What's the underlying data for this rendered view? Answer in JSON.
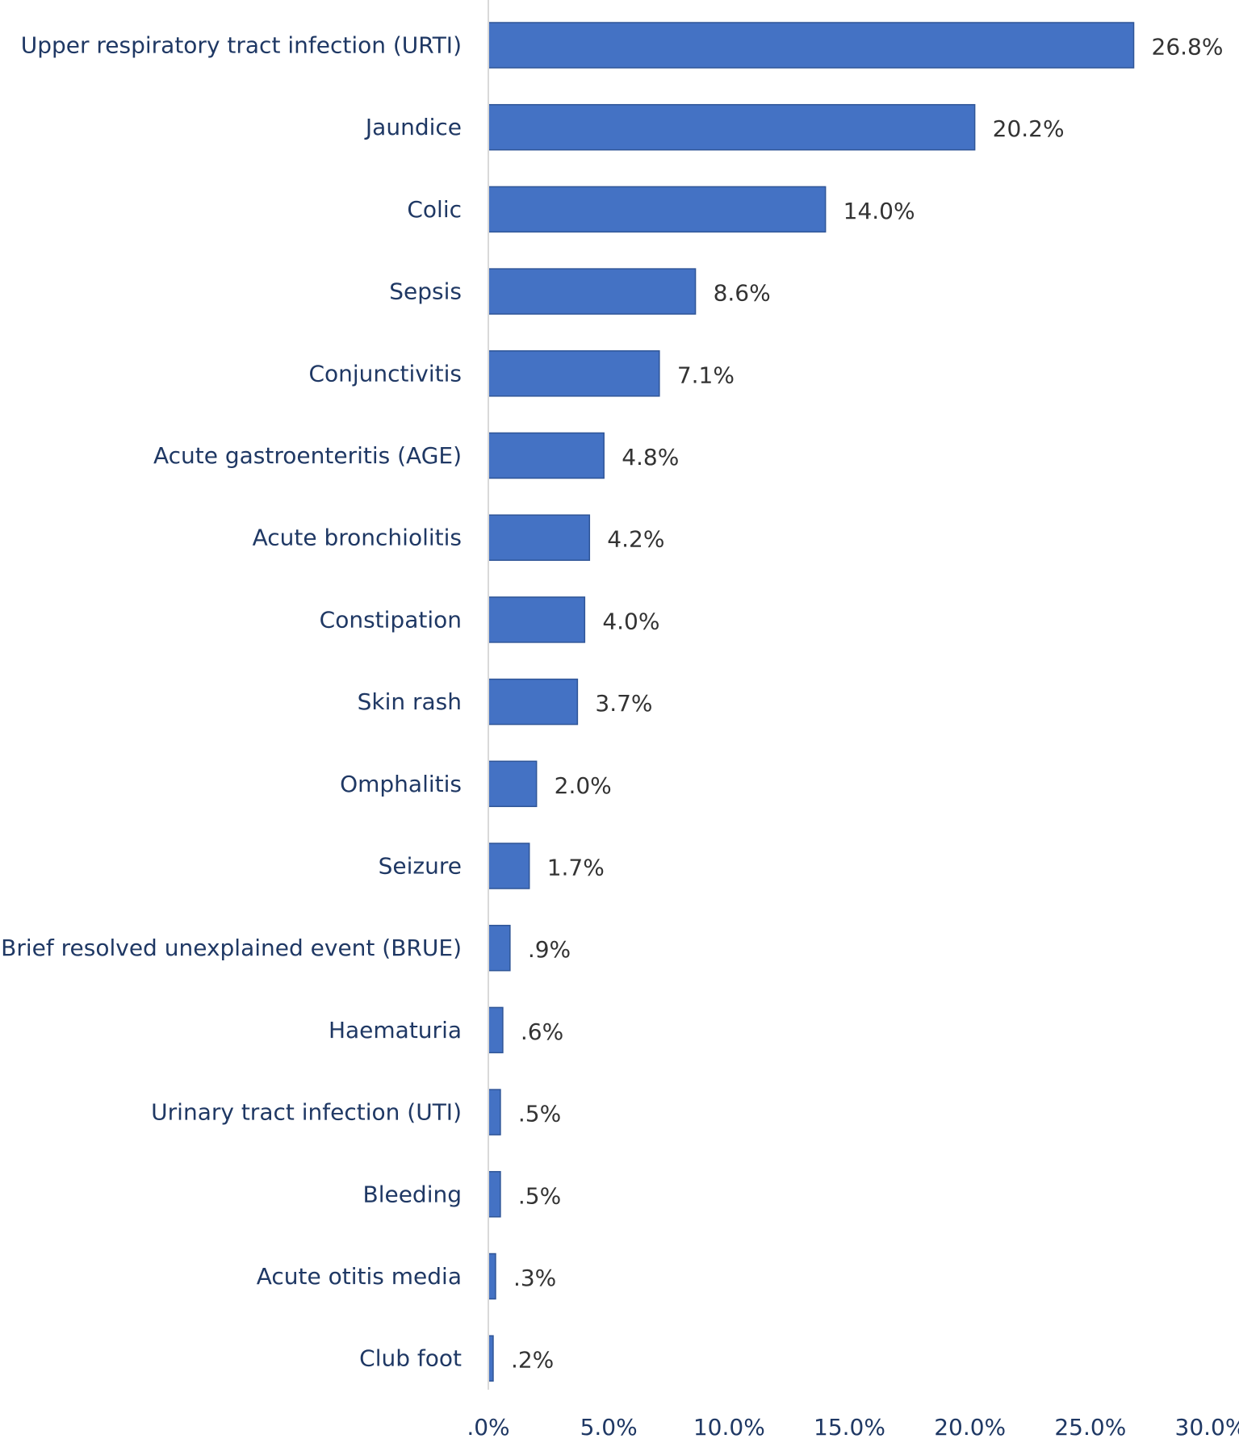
{
  "chart_data": {
    "type": "bar",
    "orientation": "horizontal",
    "title": "",
    "xlabel": "",
    "ylabel": "",
    "categories": [
      "Upper respiratory tract infection (URTI)",
      "Jaundice",
      "Colic",
      "Sepsis",
      "Conjunctivitis",
      "Acute gastroenteritis (AGE)",
      "Acute bronchiolitis",
      "Constipation",
      "Skin rash",
      "Omphalitis",
      "Seizure",
      "Brief resolved unexplained event (BRUE)",
      "Haematuria",
      "Urinary tract infection (UTI)",
      "Bleeding",
      "Acute otitis media",
      "Club foot"
    ],
    "values": [
      26.8,
      20.2,
      14.0,
      8.6,
      7.1,
      4.8,
      4.2,
      4.0,
      3.7,
      2.0,
      1.7,
      0.9,
      0.6,
      0.5,
      0.5,
      0.3,
      0.2
    ],
    "data_labels": [
      "26.8%",
      "20.2%",
      "14.0%",
      "8.6%",
      "7.1%",
      "4.8%",
      "4.2%",
      "4.0%",
      "3.7%",
      "2.0%",
      "1.7%",
      ".9%",
      ".6%",
      ".5%",
      ".5%",
      ".3%",
      ".2%"
    ],
    "x_ticks": [
      0,
      5,
      10,
      15,
      20,
      25,
      30
    ],
    "x_tick_labels": [
      ".0%",
      "5.0%",
      "10.0%",
      "15.0%",
      "20.0%",
      "25.0%",
      "30.0%"
    ],
    "xlim": [
      0,
      30
    ],
    "grid": false,
    "legend": "none",
    "colors": {
      "bar_fill": "#4472c4",
      "bar_stroke": "#2f5597",
      "axis_line": "#d9d9d9",
      "category_text": "#1f3864",
      "data_label_text": "#333333",
      "tick_text": "#1f3864"
    }
  }
}
